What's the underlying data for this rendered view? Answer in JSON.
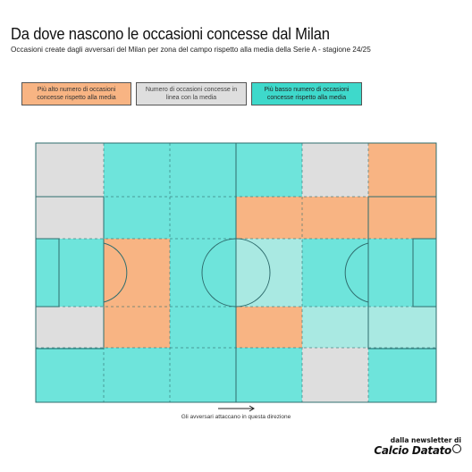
{
  "header": {
    "title": "Da dove nascono le occasioni concesse dal Milan",
    "subtitle": "Occasioni create dagli avversari del Milan per zona del campo rispetto alla media della Serie A  - stagione 24/25"
  },
  "legend": {
    "high": "Più alto numero di occasioni concesse rispetto alla media",
    "average": "Numero di occasioni concesse in linea con la media",
    "low": "Più basso numero di occasioni concesse rispetto alla media"
  },
  "footer": {
    "direction": "Gli avversari attaccano in questa direzione",
    "brand_pre": "dalla newsletter di",
    "brand_name": "Calcio Datato"
  },
  "colors": {
    "high": "#f8b483",
    "average": "#dedede",
    "low": "#6ee4db",
    "low_light": "#a9e9e2",
    "lines": "#2f6d6e"
  },
  "chart_data": {
    "type": "heatmap",
    "x_zones": 6,
    "y_zones": 5,
    "categories": [
      "high",
      "average",
      "low",
      "low_light"
    ],
    "grid": [
      [
        "average",
        "low",
        "low",
        "low",
        "average",
        "high"
      ],
      [
        "average",
        "low",
        "low",
        "high",
        "high",
        "high"
      ],
      [
        "low",
        "high",
        "low",
        "low_light",
        "low",
        "low"
      ],
      [
        "average",
        "high",
        "low",
        "high",
        "low_light",
        "low_light"
      ],
      [
        "low",
        "low",
        "low",
        "low",
        "average",
        "low"
      ]
    ],
    "grid_note": "rows top to bottom, columns left to right; values are legend categories"
  }
}
